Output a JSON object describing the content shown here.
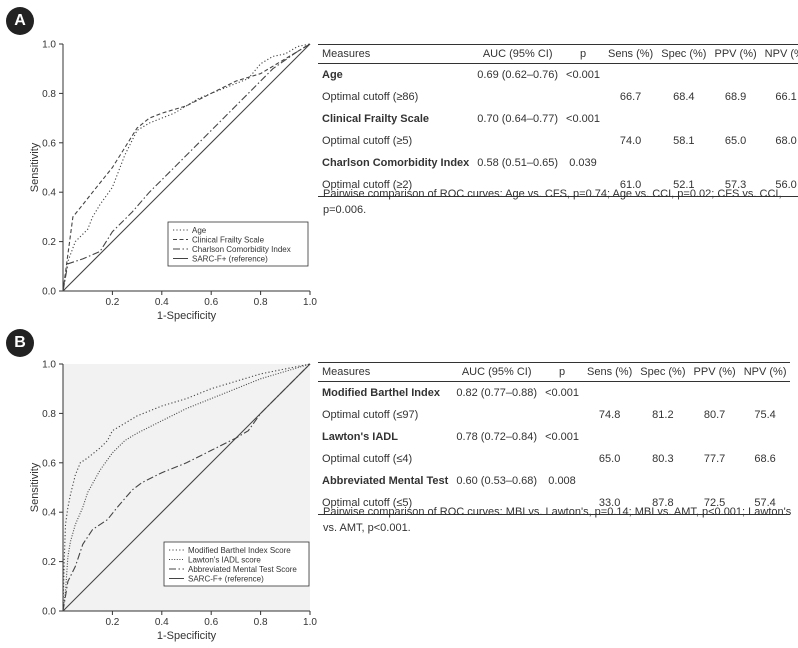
{
  "panels": [
    {
      "label": "A",
      "plot": {
        "type": "line",
        "xlabel": "1-Specificity",
        "ylabel": "Sensitivity",
        "xlim": [
          0,
          1
        ],
        "ylim": [
          0,
          1
        ],
        "xticks": [
          "0.2",
          "0.4",
          "0.6",
          "0.8",
          "1.0"
        ],
        "yticks": [
          "0.0",
          "0.2",
          "0.4",
          "0.6",
          "0.8",
          "1.0"
        ],
        "background": "#ffffff",
        "series": [
          {
            "name": "Age",
            "style": "dotted",
            "x": [
              0,
              0.02,
              0.05,
              0.08,
              0.1,
              0.12,
              0.15,
              0.2,
              0.25,
              0.3,
              0.35,
              0.4,
              0.45,
              0.5,
              0.55,
              0.6,
              0.7,
              0.75,
              0.8,
              0.85,
              0.9,
              0.95,
              1.0
            ],
            "y": [
              0,
              0.12,
              0.2,
              0.23,
              0.25,
              0.3,
              0.35,
              0.42,
              0.55,
              0.65,
              0.68,
              0.7,
              0.72,
              0.75,
              0.78,
              0.8,
              0.84,
              0.86,
              0.92,
              0.95,
              0.96,
              0.99,
              1.0
            ]
          },
          {
            "name": "Clinical Frailty Scale",
            "style": "dashed",
            "x": [
              0,
              0.04,
              0.08,
              0.12,
              0.16,
              0.2,
              0.25,
              0.3,
              0.35,
              0.4,
              0.5,
              0.6,
              0.7,
              0.8,
              0.9,
              1.0
            ],
            "y": [
              0,
              0.3,
              0.35,
              0.4,
              0.45,
              0.5,
              0.58,
              0.66,
              0.7,
              0.72,
              0.75,
              0.8,
              0.85,
              0.88,
              0.94,
              1.0
            ]
          },
          {
            "name": "Charlson Comorbidity Index",
            "style": "dashdot",
            "x": [
              0,
              0.02,
              0.08,
              0.15,
              0.2,
              0.28,
              0.35,
              0.45,
              0.55,
              0.65,
              0.75,
              0.85,
              0.95,
              1.0
            ],
            "y": [
              0,
              0.11,
              0.13,
              0.16,
              0.24,
              0.32,
              0.4,
              0.5,
              0.6,
              0.7,
              0.8,
              0.9,
              0.97,
              1.0
            ]
          },
          {
            "name": "SARC-F+ (reference)",
            "style": "solid",
            "x": [
              0,
              1
            ],
            "y": [
              0,
              1
            ]
          }
        ]
      },
      "table": {
        "headers": [
          "Measures",
          "AUC (95% CI)",
          "p",
          "Sens (%)",
          "Spec (%)",
          "PPV (%)",
          "NPV (%)"
        ],
        "rows": [
          {
            "type": "measure",
            "cells": [
              "Age",
              "0.69 (0.62–0.76)",
              "<0.001",
              "",
              "",
              "",
              ""
            ]
          },
          {
            "type": "cutoff",
            "cells": [
              "Optimal cutoff (≥86)",
              "",
              "",
              "66.7",
              "68.4",
              "68.9",
              "66.1"
            ]
          },
          {
            "type": "measure",
            "cells": [
              "Clinical Frailty Scale",
              "0.70 (0.64–0.77)",
              "<0.001",
              "",
              "",
              "",
              ""
            ]
          },
          {
            "type": "cutoff",
            "cells": [
              "Optimal cutoff (≥5)",
              "",
              "",
              "74.0",
              "58.1",
              "65.0",
              "68.0"
            ]
          },
          {
            "type": "measure",
            "cells": [
              "Charlson Comorbidity Index",
              "0.58 (0.51–0.65)",
              "0.039",
              "",
              "",
              "",
              ""
            ]
          },
          {
            "type": "cutoff",
            "cells": [
              "Optimal cutoff (≥2)",
              "",
              "",
              "61.0",
              "52.1",
              "57.3",
              "56.0"
            ]
          }
        ]
      },
      "note": "Pairwise comparison of ROC curves: Age vs. CFS, p=0.74; Age vs. CCI, p=0.02; CFS vs. CCI, p=0.006."
    },
    {
      "label": "B",
      "plot": {
        "type": "line",
        "xlabel": "1-Specificity",
        "ylabel": "Sensitivity",
        "xlim": [
          0,
          1
        ],
        "ylim": [
          0,
          1
        ],
        "xticks": [
          "0.2",
          "0.4",
          "0.6",
          "0.8",
          "1.0"
        ],
        "yticks": [
          "0.0",
          "0.2",
          "0.4",
          "0.6",
          "0.8",
          "1.0"
        ],
        "background": "#f2f2f2",
        "series": [
          {
            "name": "Modified Barthel Index Score",
            "style": "dotted",
            "x": [
              0,
              0.005,
              0.01,
              0.02,
              0.03,
              0.05,
              0.07,
              0.1,
              0.15,
              0.18,
              0.2,
              0.25,
              0.3,
              0.4,
              0.5,
              0.6,
              0.7,
              0.8,
              0.9,
              1.0
            ],
            "y": [
              0,
              0.2,
              0.35,
              0.42,
              0.47,
              0.55,
              0.6,
              0.62,
              0.66,
              0.69,
              0.73,
              0.76,
              0.79,
              0.83,
              0.86,
              0.9,
              0.93,
              0.96,
              0.98,
              1.0
            ]
          },
          {
            "name": "Lawton's IADL score",
            "style": "dotted2",
            "x": [
              0,
              0.01,
              0.02,
              0.03,
              0.05,
              0.08,
              0.1,
              0.15,
              0.2,
              0.25,
              0.3,
              0.4,
              0.5,
              0.6,
              0.7,
              0.8,
              0.9,
              1.0
            ],
            "y": [
              0,
              0.08,
              0.22,
              0.28,
              0.35,
              0.42,
              0.48,
              0.57,
              0.64,
              0.69,
              0.72,
              0.77,
              0.82,
              0.86,
              0.9,
              0.94,
              0.97,
              1.0
            ]
          },
          {
            "name": "Abbreviated Mental Test Score",
            "style": "dashdot",
            "x": [
              0,
              0.01,
              0.02,
              0.05,
              0.08,
              0.12,
              0.18,
              0.22,
              0.28,
              0.32,
              0.4,
              0.5,
              0.6,
              0.7,
              0.75,
              0.8,
              0.9,
              1.0
            ],
            "y": [
              0,
              0.06,
              0.12,
              0.18,
              0.27,
              0.33,
              0.37,
              0.42,
              0.49,
              0.52,
              0.56,
              0.6,
              0.65,
              0.7,
              0.73,
              0.8,
              0.9,
              1.0
            ]
          },
          {
            "name": "SARC-F+ (reference)",
            "style": "solid",
            "x": [
              0,
              1
            ],
            "y": [
              0,
              1
            ]
          }
        ]
      },
      "table": {
        "headers": [
          "Measures",
          "AUC (95% CI)",
          "p",
          "Sens (%)",
          "Spec (%)",
          "PPV (%)",
          "NPV (%)"
        ],
        "rows": [
          {
            "type": "measure",
            "cells": [
              "Modified Barthel Index",
              "0.82 (0.77–0.88)",
              "<0.001",
              "",
              "",
              "",
              ""
            ]
          },
          {
            "type": "cutoff",
            "cells": [
              "Optimal cutoff (≤97)",
              "",
              "",
              "74.8",
              "81.2",
              "80.7",
              "75.4"
            ]
          },
          {
            "type": "measure",
            "cells": [
              "Lawton's IADL",
              "0.78 (0.72–0.84)",
              "<0.001",
              "",
              "",
              "",
              ""
            ]
          },
          {
            "type": "cutoff",
            "cells": [
              "Optimal cutoff (≤4)",
              "",
              "",
              "65.0",
              "80.3",
              "77.7",
              "68.6"
            ]
          },
          {
            "type": "measure",
            "cells": [
              "Abbreviated Mental Test",
              "0.60 (0.53–0.68)",
              "0.008",
              "",
              "",
              "",
              ""
            ]
          },
          {
            "type": "cutoff",
            "cells": [
              "Optimal cutoff (≤5)",
              "",
              "",
              "33.0",
              "87.8",
              "72.5",
              "57.4"
            ]
          }
        ]
      },
      "note": "Pairwise comparison of ROC curves: MBI vs. Lawton's, p=0.14; MBI vs. AMT, p<0.001; Lawton's vs. AMT, p<0.001."
    }
  ],
  "chart_data": [
    {
      "type": "line",
      "title": "A",
      "xlabel": "1-Specificity",
      "ylabel": "Sensitivity",
      "xlim": [
        0,
        1
      ],
      "ylim": [
        0,
        1
      ],
      "legend": "bottom-right",
      "series": [
        {
          "name": "Age",
          "x": [
            0,
            0.1,
            0.2,
            0.3,
            0.4,
            0.6,
            0.8,
            1.0
          ],
          "y": [
            0,
            0.25,
            0.42,
            0.65,
            0.7,
            0.8,
            0.92,
            1.0
          ]
        },
        {
          "name": "Clinical Frailty Scale",
          "x": [
            0,
            0.04,
            0.2,
            0.3,
            0.4,
            0.6,
            0.8,
            1.0
          ],
          "y": [
            0,
            0.3,
            0.5,
            0.66,
            0.72,
            0.8,
            0.88,
            1.0
          ]
        },
        {
          "name": "Charlson Comorbidity Index",
          "x": [
            0,
            0.02,
            0.15,
            0.35,
            0.55,
            0.75,
            1.0
          ],
          "y": [
            0,
            0.11,
            0.16,
            0.4,
            0.6,
            0.8,
            1.0
          ]
        },
        {
          "name": "SARC-F+ (reference)",
          "x": [
            0,
            1
          ],
          "y": [
            0,
            1
          ]
        }
      ]
    },
    {
      "type": "line",
      "title": "B",
      "xlabel": "1-Specificity",
      "ylabel": "Sensitivity",
      "xlim": [
        0,
        1
      ],
      "ylim": [
        0,
        1
      ],
      "legend": "bottom-right",
      "series": [
        {
          "name": "Modified Barthel Index Score",
          "x": [
            0,
            0.05,
            0.1,
            0.2,
            0.4,
            0.6,
            0.8,
            1.0
          ],
          "y": [
            0,
            0.55,
            0.62,
            0.73,
            0.83,
            0.9,
            0.96,
            1.0
          ]
        },
        {
          "name": "Lawton's IADL score",
          "x": [
            0,
            0.05,
            0.1,
            0.2,
            0.4,
            0.6,
            0.8,
            1.0
          ],
          "y": [
            0,
            0.35,
            0.48,
            0.64,
            0.77,
            0.86,
            0.94,
            1.0
          ]
        },
        {
          "name": "Abbreviated Mental Test Score",
          "x": [
            0,
            0.08,
            0.18,
            0.32,
            0.5,
            0.7,
            1.0
          ],
          "y": [
            0,
            0.27,
            0.37,
            0.52,
            0.6,
            0.7,
            1.0
          ]
        },
        {
          "name": "SARC-F+ (reference)",
          "x": [
            0,
            1
          ],
          "y": [
            0,
            1
          ]
        }
      ]
    }
  ]
}
